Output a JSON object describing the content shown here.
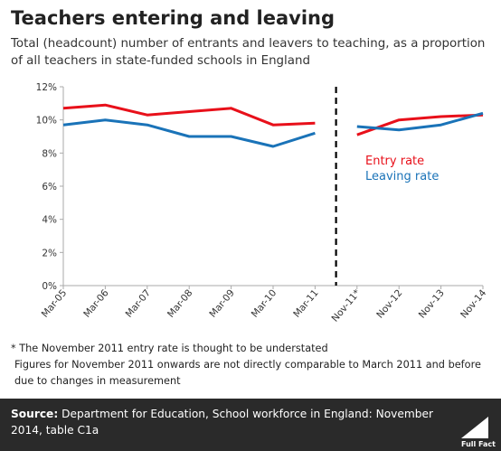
{
  "header": {
    "title": "Teachers entering and leaving",
    "subtitle": "Total (headcount) number of entrants and leavers to teaching, as a proportion of all teachers in state-funded schools in England"
  },
  "colors": {
    "entry": "#e8101a",
    "leaving": "#1a73b8",
    "divider": "#000000",
    "axis": "#aaaaaa"
  },
  "chart_data": {
    "type": "line",
    "title": "Teachers entering and leaving",
    "categories": [
      "Mar-05",
      "Mar-06",
      "Mar-07",
      "Mar-08",
      "Mar-09",
      "Mar-10",
      "Mar-11",
      "Nov-11*",
      "Nov-12",
      "Nov-13",
      "Nov-14"
    ],
    "series": [
      {
        "name": "Entry rate",
        "color": "#e8101a",
        "segments": [
          {
            "x": [
              "Mar-05",
              "Mar-06",
              "Mar-07",
              "Mar-08",
              "Mar-09",
              "Mar-10",
              "Mar-11"
            ],
            "values": [
              10.7,
              10.9,
              10.3,
              10.5,
              10.7,
              9.7,
              9.8
            ]
          },
          {
            "x": [
              "Nov-11*",
              "Nov-12",
              "Nov-13",
              "Nov-14"
            ],
            "values": [
              9.1,
              10.0,
              10.2,
              10.3
            ]
          }
        ]
      },
      {
        "name": "Leaving rate",
        "color": "#1a73b8",
        "segments": [
          {
            "x": [
              "Mar-05",
              "Mar-06",
              "Mar-07",
              "Mar-08",
              "Mar-09",
              "Mar-10",
              "Mar-11"
            ],
            "values": [
              9.7,
              10.0,
              9.7,
              9.0,
              9.0,
              8.4,
              9.2
            ]
          },
          {
            "x": [
              "Nov-11*",
              "Nov-12",
              "Nov-13",
              "Nov-14"
            ],
            "values": [
              9.6,
              9.4,
              9.7,
              10.4
            ]
          }
        ]
      }
    ],
    "ylim": [
      0,
      12
    ],
    "y_ticks": [
      "0%",
      "2%",
      "4%",
      "6%",
      "8%",
      "10%",
      "12%"
    ],
    "y_tick_values": [
      0,
      2,
      4,
      6,
      8,
      10,
      12
    ],
    "divider_between": [
      "Mar-11",
      "Nov-11*"
    ],
    "grid": false,
    "legend_placement": "right"
  },
  "notes": {
    "asterisk": "* The November 2011 entry rate is thought to be understated",
    "comparability": "Figures for November 2011 onwards are not directly comparable to March 2011 and before due to changes in measurement"
  },
  "footer": {
    "source_label": "Source:",
    "source_text": "Department for Education, School workforce in England: November 2014, table C1a",
    "logo_text": "Full Fact"
  }
}
